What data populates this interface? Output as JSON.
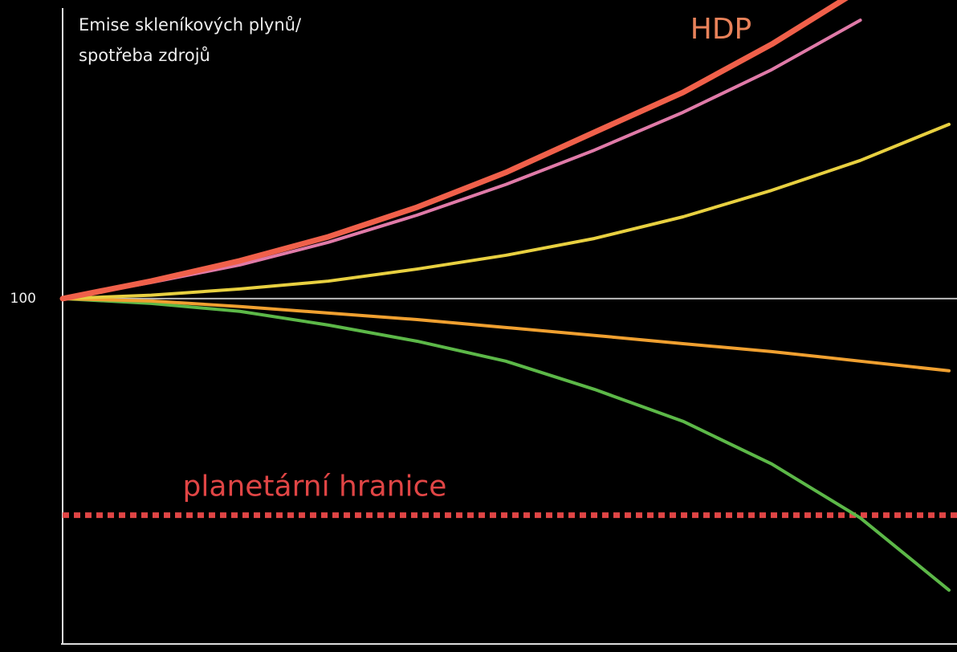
{
  "chart_data": {
    "type": "line",
    "ylabel": [
      "Emise skleníkových plynů/",
      "spotřeba zdrojů"
    ],
    "x": [
      0,
      1,
      2,
      3,
      4,
      5,
      6,
      7,
      8,
      9,
      10
    ],
    "xlim": [
      0,
      10
    ],
    "ylim": [
      0,
      185
    ],
    "yticks": [
      100
    ],
    "grid": true,
    "series": [
      {
        "name": "HDP",
        "color": "#f0604a",
        "width": 7,
        "values": [
          100,
          105.1,
          111,
          118,
          126.6,
          136.7,
          148.4,
          160,
          174,
          190,
          null
        ]
      },
      {
        "color": "#e07aa8",
        "width": 4,
        "values": [
          100,
          104.7,
          109.8,
          116.4,
          124.3,
          133.2,
          143.2,
          154.2,
          166.6,
          181,
          null
        ]
      },
      {
        "color": "#e8d040",
        "width": 4,
        "values": [
          100,
          101,
          102.8,
          105.1,
          108.6,
          112.6,
          117.5,
          123.8,
          131.5,
          140.2,
          150.7
        ]
      },
      {
        "color": "#f0a030",
        "width": 4,
        "values": [
          100,
          99.3,
          97.7,
          95.8,
          93.9,
          91.6,
          89.3,
          86.9,
          84.6,
          81.8,
          79
        ]
      },
      {
        "color": "#5cb848",
        "width": 4,
        "values": [
          100,
          98.6,
          96.3,
          92.3,
          87.6,
          81.8,
          73.6,
          64.3,
          51.9,
          36.2,
          15.2
        ]
      }
    ],
    "threshold": {
      "label": "planetární hranice",
      "value": 37,
      "color": "#e04545"
    }
  }
}
